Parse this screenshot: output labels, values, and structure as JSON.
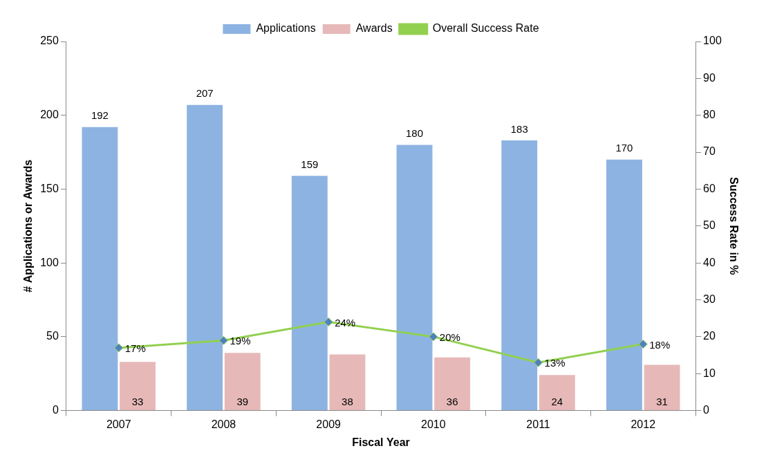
{
  "chart_data": {
    "type": "bar",
    "categories": [
      "2007",
      "2008",
      "2009",
      "2010",
      "2011",
      "2012"
    ],
    "series": [
      {
        "name": "Applications",
        "color": "#8db3e2",
        "values": [
          192,
          207,
          159,
          180,
          183,
          170
        ]
      },
      {
        "name": "Awards",
        "color": "#e6b9b8",
        "values": [
          33,
          39,
          38,
          36,
          24,
          31
        ]
      },
      {
        "name": "Overall Success Rate",
        "type": "line",
        "color": "#92d050",
        "marker": "diamond",
        "axis": "y2",
        "values": [
          17,
          19,
          24,
          20,
          13,
          18
        ],
        "value_labels": [
          "17%",
          "19%",
          "24%",
          "20%",
          "13%",
          "18%"
        ]
      }
    ],
    "x_label": "Fiscal Year",
    "y_label": "# Applications or Awards",
    "y2_label": "Success Rate in %",
    "ylim": [
      0,
      250
    ],
    "yticks": [
      0,
      50,
      100,
      150,
      200,
      250
    ],
    "y2lim": [
      0,
      100
    ],
    "y2ticks": [
      0,
      10,
      20,
      30,
      40,
      50,
      60,
      70,
      80,
      90,
      100
    ],
    "grid": false,
    "legend": "top",
    "data_labels": true
  }
}
